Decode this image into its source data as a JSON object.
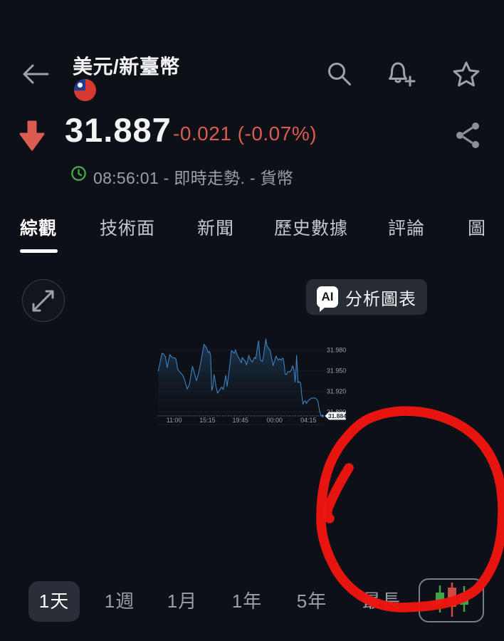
{
  "colors": {
    "background": "#0d1016",
    "surface": "#272b34",
    "chip": "#2a2e38",
    "accent_red": "#dc5b50",
    "line_blue": "#3d84c8",
    "annotation_red": "#ee1511",
    "badge_bg": "#ffffff",
    "badge_text": "#1d2433",
    "green": "#47a84b",
    "text_primary": "#f2f3f5",
    "text_secondary": "#9aa0a9",
    "tab_inactive": "#c4c8cf",
    "grid": "#272c34"
  },
  "header": {
    "title": "美元/新臺幣",
    "flag": "taiwan-flag",
    "icons": [
      "back-arrow",
      "search",
      "alert-add-bell",
      "watchlist-star"
    ]
  },
  "quote": {
    "direction": "down",
    "price": "31.887",
    "change": "-0.021 (-0.07%)",
    "meta": "08:56:01 - 即時走勢. - 貨幣"
  },
  "tabs": [
    {
      "label": "綜觀",
      "active": true
    },
    {
      "label": "技術面",
      "active": false
    },
    {
      "label": "新聞",
      "active": false
    },
    {
      "label": "歷史數據",
      "active": false
    },
    {
      "label": "評論",
      "active": false
    },
    {
      "label": "圖",
      "active": false
    }
  ],
  "chart_toolbar": {
    "ai_badge": "AI",
    "ai_label": "分析圖表"
  },
  "chart_data": {
    "type": "area",
    "y_ticks": [
      "31.980",
      "31.950",
      "31.920",
      "31.890"
    ],
    "x_labels": [
      "11:00",
      "15:15",
      "19:45",
      "00:00",
      "04:15"
    ],
    "last_price": "31.884",
    "y_axis_anchor": {
      "top_price": 31.98,
      "bottom_price": 31.89
    },
    "grid": true,
    "legend": "none",
    "points": [
      [
        30,
        31.949
      ],
      [
        43,
        31.975
      ],
      [
        48,
        31.974
      ],
      [
        55,
        31.97
      ],
      [
        61,
        31.954
      ],
      [
        70,
        31.973
      ],
      [
        78,
        31.969
      ],
      [
        88,
        31.968
      ],
      [
        92,
        31.966
      ],
      [
        97,
        31.952
      ],
      [
        104,
        31.948
      ],
      [
        113,
        31.944
      ],
      [
        120,
        31.938
      ],
      [
        130,
        31.923
      ],
      [
        138,
        31.93
      ],
      [
        148,
        31.956
      ],
      [
        155,
        31.947
      ],
      [
        162,
        31.935
      ],
      [
        170,
        31.947
      ],
      [
        178,
        31.964
      ],
      [
        188,
        31.988
      ],
      [
        197,
        31.983
      ],
      [
        202,
        31.976
      ],
      [
        207,
        31.978
      ],
      [
        211,
        31.972
      ],
      [
        215,
        31.921
      ],
      [
        219,
        31.927
      ],
      [
        223,
        31.944
      ],
      [
        231,
        31.924
      ],
      [
        235,
        31.917
      ],
      [
        244,
        31.923
      ],
      [
        250,
        31.926
      ],
      [
        255,
        31.922
      ],
      [
        263,
        31.943
      ],
      [
        268,
        31.927
      ],
      [
        278,
        31.96
      ],
      [
        283,
        31.979
      ],
      [
        288,
        31.977
      ],
      [
        293,
        31.975
      ],
      [
        297,
        31.98
      ],
      [
        303,
        31.972
      ],
      [
        310,
        31.967
      ],
      [
        317,
        31.961
      ],
      [
        320,
        31.969
      ],
      [
        325,
        31.966
      ],
      [
        330,
        31.964
      ],
      [
        335,
        31.958
      ],
      [
        343,
        31.972
      ],
      [
        348,
        31.966
      ],
      [
        355,
        31.962
      ],
      [
        360,
        31.967
      ],
      [
        363,
        31.969
      ],
      [
        367,
        31.967
      ],
      [
        373,
        31.985
      ],
      [
        377,
        31.993
      ],
      [
        380,
        31.977
      ],
      [
        383,
        31.965
      ],
      [
        390,
        31.963
      ],
      [
        394,
        31.972
      ],
      [
        398,
        31.985
      ],
      [
        402,
        31.996
      ],
      [
        405,
        31.987
      ],
      [
        408,
        31.984
      ],
      [
        417,
        31.979
      ],
      [
        421,
        31.97
      ],
      [
        427,
        31.957
      ],
      [
        437,
        31.971
      ],
      [
        445,
        31.965
      ],
      [
        450,
        31.967
      ],
      [
        455,
        31.965
      ],
      [
        459,
        31.968
      ],
      [
        462,
        31.967
      ],
      [
        466,
        31.956
      ],
      [
        468,
        31.945
      ],
      [
        473,
        31.944
      ],
      [
        477,
        31.948
      ],
      [
        485,
        31.948
      ],
      [
        490,
        31.951
      ],
      [
        495,
        31.957
      ],
      [
        499,
        31.951
      ],
      [
        503,
        31.933
      ],
      [
        506,
        31.951
      ],
      [
        508,
        31.972
      ],
      [
        511,
        31.951
      ],
      [
        513,
        31.932
      ],
      [
        517,
        31.934
      ],
      [
        522,
        31.932
      ],
      [
        526,
        31.914
      ],
      [
        530,
        31.901
      ],
      [
        534,
        31.905
      ],
      [
        538,
        31.906
      ],
      [
        542,
        31.902
      ],
      [
        546,
        31.905
      ],
      [
        553,
        31.908
      ],
      [
        557,
        31.909
      ],
      [
        562,
        31.91
      ],
      [
        568,
        31.91
      ],
      [
        572,
        31.91
      ],
      [
        578,
        31.908
      ],
      [
        582,
        31.905
      ],
      [
        587,
        31.892
      ],
      [
        592,
        31.885
      ],
      [
        598,
        31.884
      ]
    ],
    "annotation": {
      "type": "hand-drawn-circle",
      "color": "#ee1511",
      "highlights": "recent price drop to 31.884"
    }
  },
  "timeframes": [
    {
      "label": "1天",
      "active": true
    },
    {
      "label": "1週",
      "active": false
    },
    {
      "label": "1月",
      "active": false
    },
    {
      "label": "1年",
      "active": false
    },
    {
      "label": "5年",
      "active": false
    },
    {
      "label": "最長",
      "active": false
    }
  ]
}
